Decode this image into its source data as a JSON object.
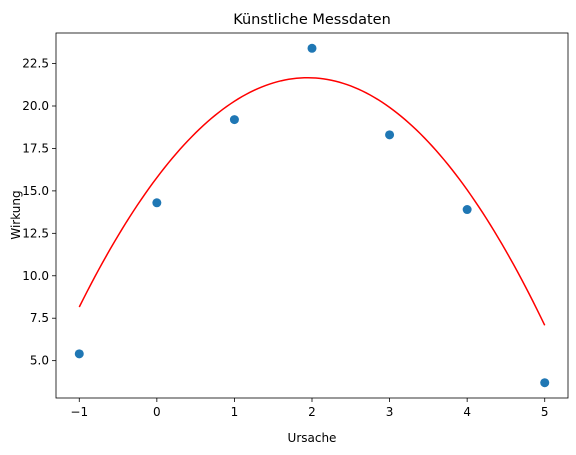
{
  "chart_data": {
    "type": "scatter",
    "title": "Künstliche Messdaten",
    "xlabel": "Ursache",
    "ylabel": "Wirkung",
    "xlim": [
      -1.3,
      5.3
    ],
    "ylim": [
      2.8,
      24.3
    ],
    "xticks": [
      -1,
      0,
      1,
      2,
      3,
      4,
      5
    ],
    "xtick_labels": [
      "−1",
      "0",
      "1",
      "2",
      "3",
      "4",
      "5"
    ],
    "yticks": [
      5.0,
      7.5,
      10.0,
      12.5,
      15.0,
      17.5,
      20.0,
      22.5
    ],
    "ytick_labels": [
      "5.0",
      "7.5",
      "10.0",
      "12.5",
      "15.0",
      "17.5",
      "20.0",
      "22.5"
    ],
    "grid": false,
    "series": [
      {
        "kind": "scatter",
        "color": "#1f77b4",
        "x": [
          -1,
          0,
          1,
          2,
          3,
          4,
          5
        ],
        "y": [
          5.4,
          14.3,
          19.2,
          23.4,
          18.3,
          13.9,
          3.7
        ]
      },
      {
        "kind": "line",
        "color": "#ff0000",
        "fit": "quadratic",
        "coefficients": {
          "a": -1.56,
          "b": 6.06,
          "c": 15.78
        },
        "x_range": [
          -1,
          5
        ]
      }
    ]
  }
}
